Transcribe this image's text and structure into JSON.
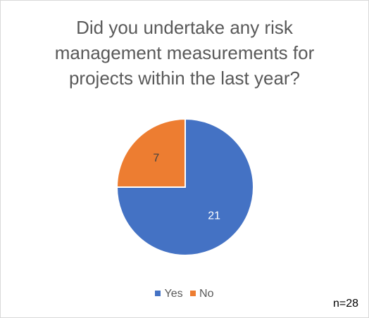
{
  "chart_data": {
    "type": "pie",
    "title_lines": [
      "Did you undertake any risk",
      "management measurements for",
      "projects within the last year?"
    ],
    "categories": [
      "Yes",
      "No"
    ],
    "values": [
      21,
      7
    ],
    "data_labels": [
      "21",
      "7"
    ],
    "colors": [
      "#4472c4",
      "#ed7d31"
    ],
    "label_colors": [
      "#ffffff",
      "#404040"
    ],
    "start_angle_deg": 0,
    "direction": "clockwise",
    "legend_position": "bottom",
    "note": "n=28"
  }
}
